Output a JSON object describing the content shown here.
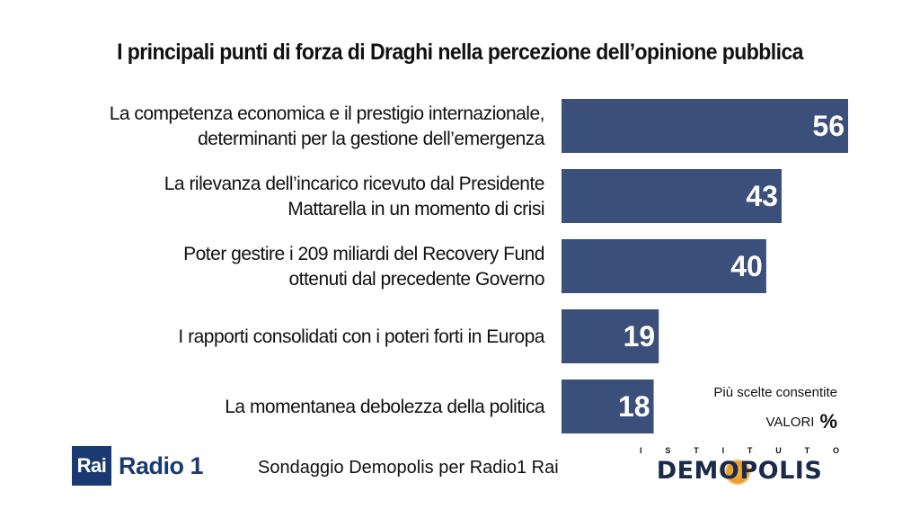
{
  "title": "I principali punti di forza di Draghi nella percezione dell’opinione pubblica",
  "chart_data": {
    "type": "bar",
    "orientation": "horizontal",
    "categories": [
      [
        "La competenza economica e il prestigio internazionale,",
        "determinanti per la gestione dell’emergenza"
      ],
      [
        "La rilevanza dell’incarico ricevuto dal Presidente",
        "Mattarella in un momento di crisi"
      ],
      [
        "Poter gestire i 209 miliardi del Recovery Fund",
        "ottenuti dal precedente Governo"
      ],
      [
        "I rapporti consolidati con i poteri forti in Europa"
      ],
      [
        "La momentanea debolezza della politica"
      ]
    ],
    "values": [
      56,
      43,
      40,
      19,
      18
    ],
    "bar_color": "#3a4f79",
    "value_label_color": "#ffffff",
    "xlim": [
      0,
      56
    ],
    "grid": false,
    "legend": "none"
  },
  "notes": {
    "multiple": "Più scelte consentite",
    "valori": "VALORI",
    "pct": "%"
  },
  "footer": {
    "rai_box": "Rai",
    "rai_name": "Radio 1",
    "source": "Sondaggio Demopolis per Radio1 Rai",
    "demo_letters": [
      "I",
      "S",
      "T",
      "I",
      "T",
      "U",
      "T",
      "O"
    ],
    "demo_name": "DEMOPOLIS"
  }
}
